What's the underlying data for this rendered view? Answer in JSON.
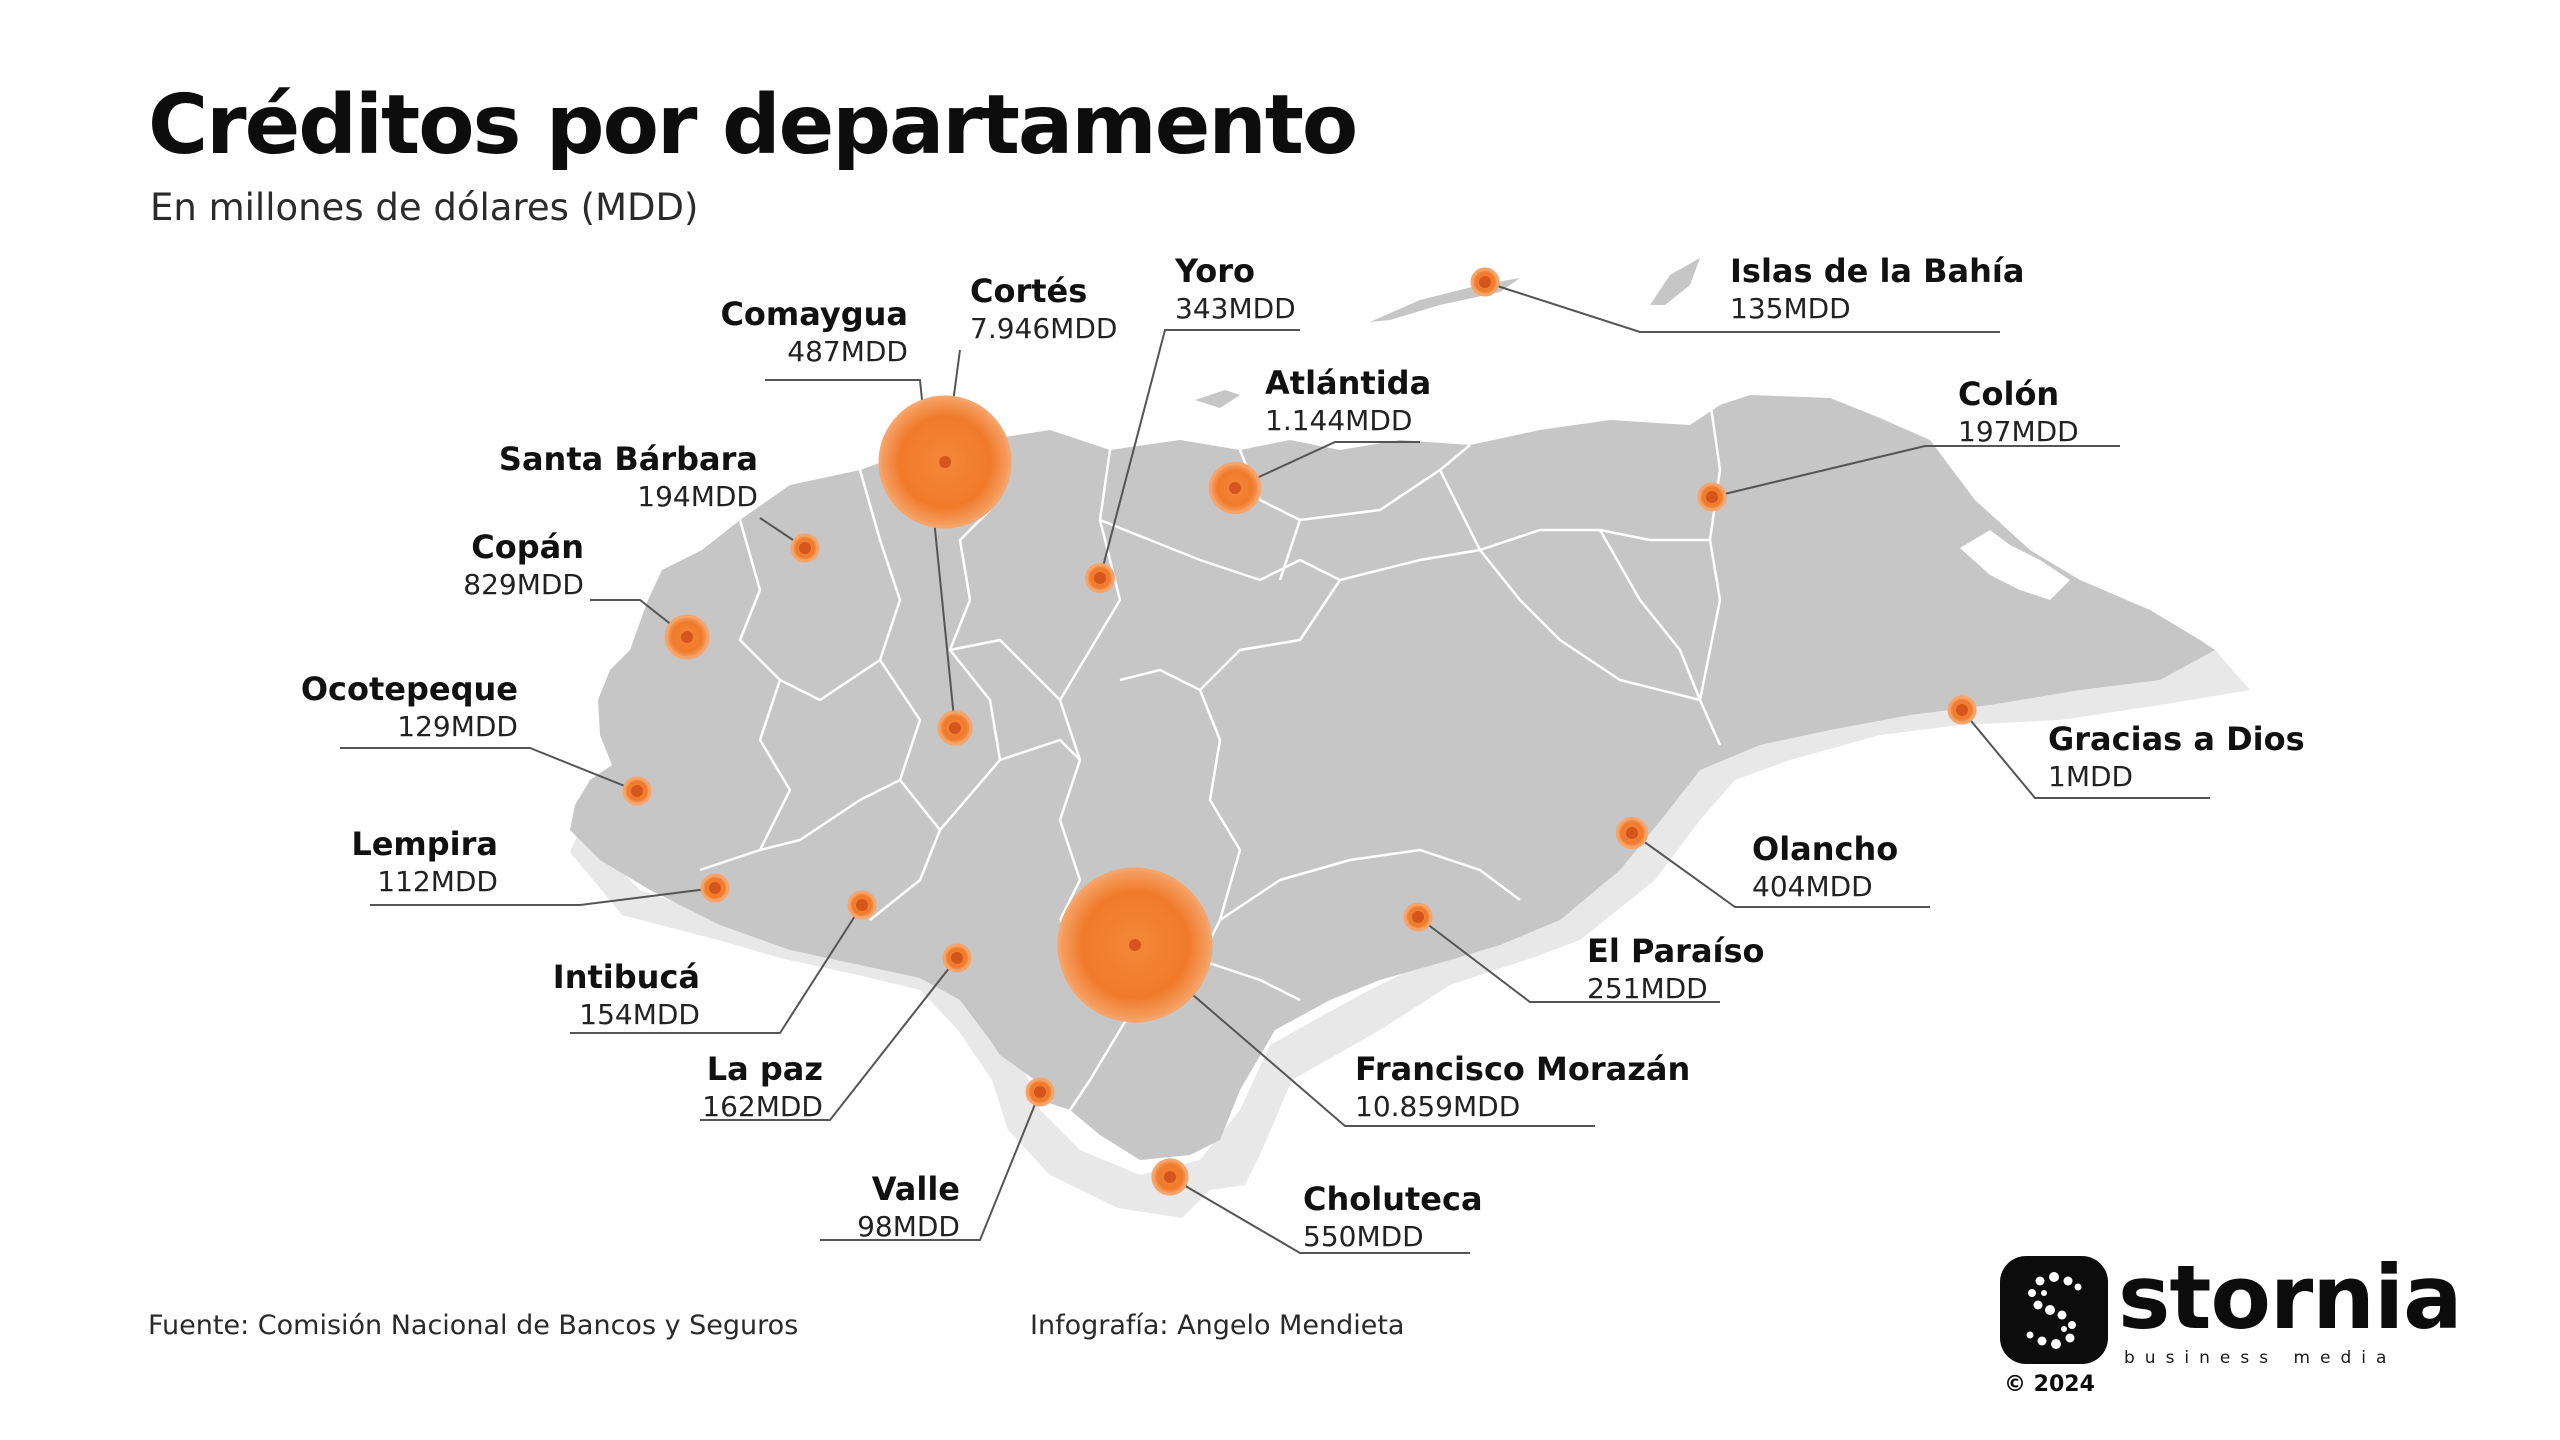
{
  "header": {
    "title": "Créditos por departamento",
    "subtitle": "En millones de dólares (MDD)"
  },
  "footer": {
    "source": "Fuente: Comisión Nacional de Bancos y Seguros",
    "credit": "Infografía: Angelo Mendieta"
  },
  "brand": {
    "name": "stornia",
    "tagline": "business media",
    "copyright": "© 2024"
  },
  "colors": {
    "accent": "#f07a2a",
    "land": "#c6c6c6",
    "border": "#ffffff",
    "text": "#111111"
  },
  "departments": [
    {
      "name": "Cortés",
      "value": "7.946MDD",
      "amount": 7946
    },
    {
      "name": "Comaygua",
      "value": "487MDD",
      "amount": 487
    },
    {
      "name": "Yoro",
      "value": "343MDD",
      "amount": 343
    },
    {
      "name": "Islas de la Bahía",
      "value": "135MDD",
      "amount": 135
    },
    {
      "name": "Atlántida",
      "value": "1.144MDD",
      "amount": 1144
    },
    {
      "name": "Colón",
      "value": "197MDD",
      "amount": 197
    },
    {
      "name": "Santa Bárbara",
      "value": "194MDD",
      "amount": 194
    },
    {
      "name": "Copán",
      "value": "829MDD",
      "amount": 829
    },
    {
      "name": "Ocotepeque",
      "value": "129MDD",
      "amount": 129
    },
    {
      "name": "Gracias a Dios",
      "value": "1MDD",
      "amount": 1
    },
    {
      "name": "Lempira",
      "value": "112MDD",
      "amount": 112
    },
    {
      "name": "Olancho",
      "value": "404MDD",
      "amount": 404
    },
    {
      "name": "Intibucá",
      "value": "154MDD",
      "amount": 154
    },
    {
      "name": "El Paraíso",
      "value": "251MDD",
      "amount": 251
    },
    {
      "name": "La paz",
      "value": "162MDD",
      "amount": 162
    },
    {
      "name": "Francisco Morazán",
      "value": "10.859MDD",
      "amount": 10859
    },
    {
      "name": "Valle",
      "value": "98MDD",
      "amount": 98
    },
    {
      "name": "Choluteca",
      "value": "550MDD",
      "amount": 550
    }
  ]
}
